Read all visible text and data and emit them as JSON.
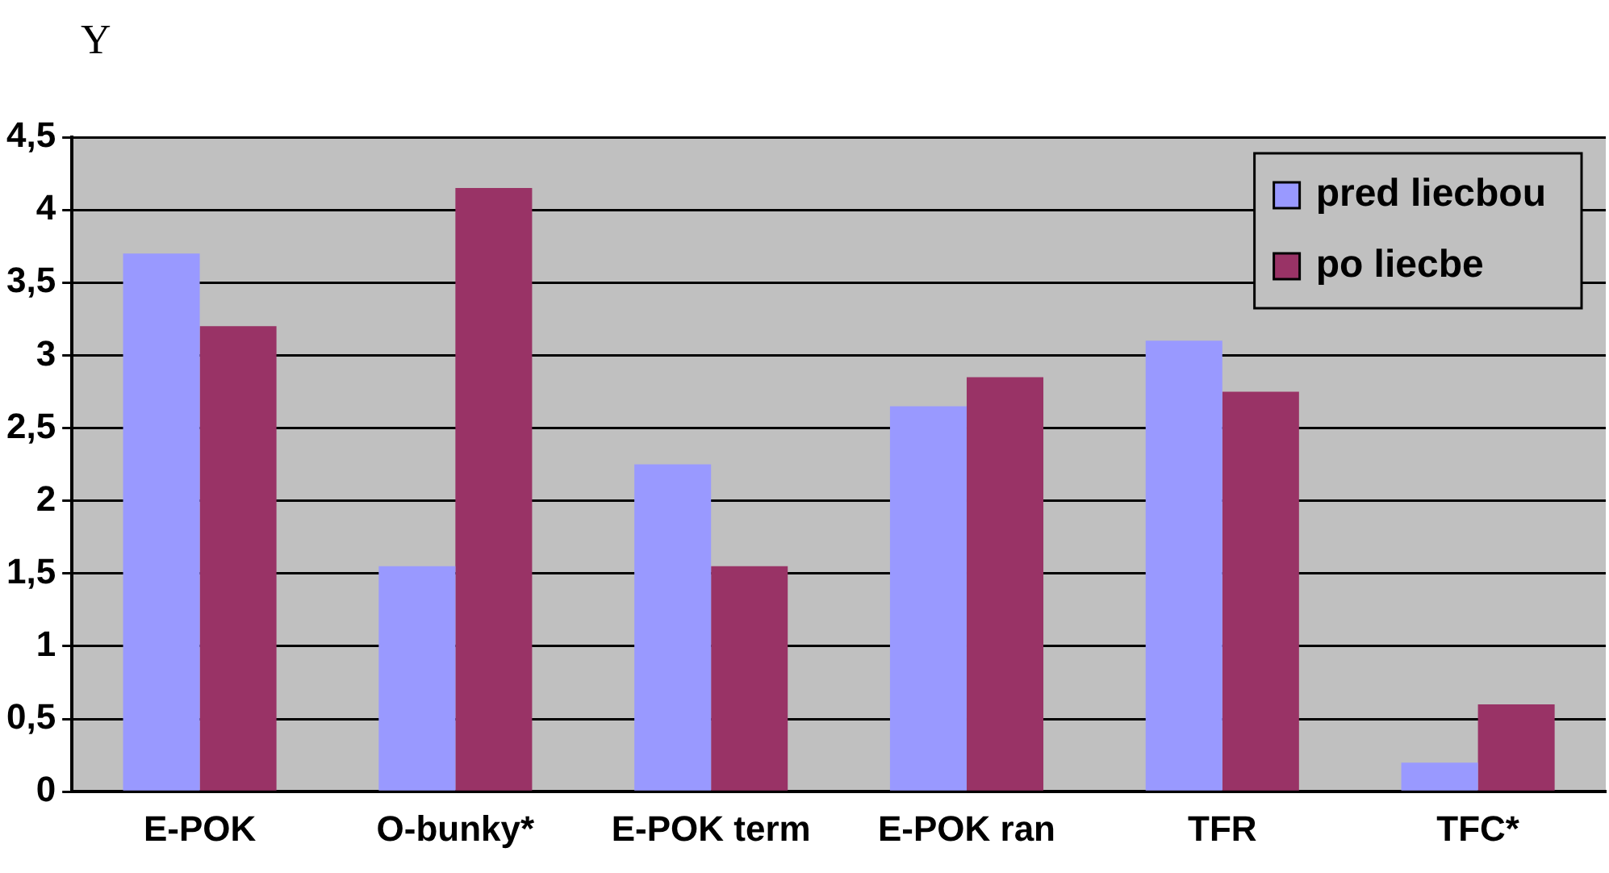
{
  "chart_data": {
    "type": "bar",
    "ylabel": "Y",
    "categories": [
      "E-POK",
      "O-bunky*",
      "E-POK term",
      "E-POK ran",
      "TFR",
      "TFC*"
    ],
    "series": [
      {
        "name": "pred liecbou",
        "color": "#9999ff",
        "values": [
          3.7,
          1.55,
          2.25,
          2.65,
          3.1,
          0.2
        ]
      },
      {
        "name": "po liecbe",
        "color": "#993366",
        "values": [
          3.2,
          4.15,
          1.55,
          2.85,
          2.75,
          0.6
        ]
      }
    ],
    "ylim": [
      0,
      4.5
    ],
    "yticks": [
      0,
      {
        "value": 0.5,
        "label": "0,5"
      },
      1,
      {
        "value": 1.5,
        "label": "1,5"
      },
      2,
      {
        "value": 2.5,
        "label": "2,5"
      },
      3,
      {
        "value": 3.5,
        "label": "3,5"
      },
      4,
      {
        "value": 4.5,
        "label": "4,5"
      }
    ],
    "grid": "y",
    "legend": "top right"
  }
}
